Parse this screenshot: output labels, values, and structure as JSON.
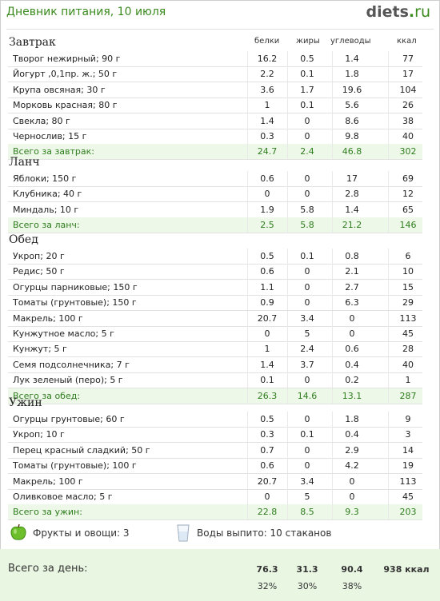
{
  "header": {
    "title": "Дневник питания, 10 июля",
    "logo_main": "diets",
    "logo_dot": ".",
    "logo_tld": "ru"
  },
  "columns": {
    "protein": "белки",
    "fat": "жиры",
    "carbs": "углеводы",
    "kcal": "ккал"
  },
  "sections": [
    {
      "title": "Завтрак",
      "rows": [
        {
          "name": "Творог нежирный; 90 г",
          "b": "16.2",
          "z": "0.5",
          "u": "1.4",
          "k": "77"
        },
        {
          "name": "Йогурт ,0,1пр. ж.; 50 г",
          "b": "2.2",
          "z": "0.1",
          "u": "1.8",
          "k": "17"
        },
        {
          "name": "Крупа овсяная; 30 г",
          "b": "3.6",
          "z": "1.7",
          "u": "19.6",
          "k": "104"
        },
        {
          "name": "Морковь красная; 80 г",
          "b": "1",
          "z": "0.1",
          "u": "5.6",
          "k": "26"
        },
        {
          "name": "Свекла; 80 г",
          "b": "1.4",
          "z": "0",
          "u": "8.6",
          "k": "38"
        },
        {
          "name": "Чернослив; 15 г",
          "b": "0.3",
          "z": "0",
          "u": "9.8",
          "k": "40"
        }
      ],
      "total": {
        "name": "Всего за завтрак:",
        "b": "24.7",
        "z": "2.4",
        "u": "46.8",
        "k": "302"
      }
    },
    {
      "title": "Ланч",
      "rows": [
        {
          "name": "Яблоки; 150 г",
          "b": "0.6",
          "z": "0",
          "u": "17",
          "k": "69"
        },
        {
          "name": "Клубника; 40 г",
          "b": "0",
          "z": "0",
          "u": "2.8",
          "k": "12"
        },
        {
          "name": "Миндаль; 10 г",
          "b": "1.9",
          "z": "5.8",
          "u": "1.4",
          "k": "65"
        }
      ],
      "total": {
        "name": "Всего за ланч:",
        "b": "2.5",
        "z": "5.8",
        "u": "21.2",
        "k": "146"
      }
    },
    {
      "title": "Обед",
      "rows": [
        {
          "name": "Укроп; 20 г",
          "b": "0.5",
          "z": "0.1",
          "u": "0.8",
          "k": "6"
        },
        {
          "name": "Редис; 50 г",
          "b": "0.6",
          "z": "0",
          "u": "2.1",
          "k": "10"
        },
        {
          "name": "Огурцы парниковые; 150 г",
          "b": "1.1",
          "z": "0",
          "u": "2.7",
          "k": "15"
        },
        {
          "name": "Томаты (грунтовые); 150 г",
          "b": "0.9",
          "z": "0",
          "u": "6.3",
          "k": "29"
        },
        {
          "name": "Макрель; 100 г",
          "b": "20.7",
          "z": "3.4",
          "u": "0",
          "k": "113"
        },
        {
          "name": "Кунжутное масло; 5 г",
          "b": "0",
          "z": "5",
          "u": "0",
          "k": "45"
        },
        {
          "name": "Кунжут; 5 г",
          "b": "1",
          "z": "2.4",
          "u": "0.6",
          "k": "28"
        },
        {
          "name": "Семя подсолнечника; 7 г",
          "b": "1.4",
          "z": "3.7",
          "u": "0.4",
          "k": "40"
        },
        {
          "name": "Лук зеленый (перо); 5 г",
          "b": "0.1",
          "z": "0",
          "u": "0.2",
          "k": "1"
        }
      ],
      "total": {
        "name": "Всего за обед:",
        "b": "26.3",
        "z": "14.6",
        "u": "13.1",
        "k": "287"
      }
    },
    {
      "title": "Ужин",
      "rows": [
        {
          "name": "Огурцы грунтовые; 60 г",
          "b": "0.5",
          "z": "0",
          "u": "1.8",
          "k": "9"
        },
        {
          "name": "Укроп; 10 г",
          "b": "0.3",
          "z": "0.1",
          "u": "0.4",
          "k": "3"
        },
        {
          "name": "Перец красный сладкий; 50 г",
          "b": "0.7",
          "z": "0",
          "u": "2.9",
          "k": "14"
        },
        {
          "name": "Томаты (грунтовые); 100 г",
          "b": "0.6",
          "z": "0",
          "u": "4.2",
          "k": "19"
        },
        {
          "name": "Макрель; 100 г",
          "b": "20.7",
          "z": "3.4",
          "u": "0",
          "k": "113"
        },
        {
          "name": "Оливковое масло; 5 г",
          "b": "0",
          "z": "5",
          "u": "0",
          "k": "45"
        }
      ],
      "total": {
        "name": "Всего за ужин:",
        "b": "22.8",
        "z": "8.5",
        "u": "9.3",
        "k": "203"
      }
    }
  ],
  "footer": {
    "fruits": "Фрукты и овощи: 3",
    "water": "Воды выпито: 10 стаканов",
    "apple_color": "#6cbf2a"
  },
  "day": {
    "label": "Всего за день:",
    "b": "76.3",
    "z": "31.3",
    "u": "90.4",
    "k": "938 ккал",
    "pb": "32%",
    "pz": "30%",
    "pu": "38%"
  }
}
